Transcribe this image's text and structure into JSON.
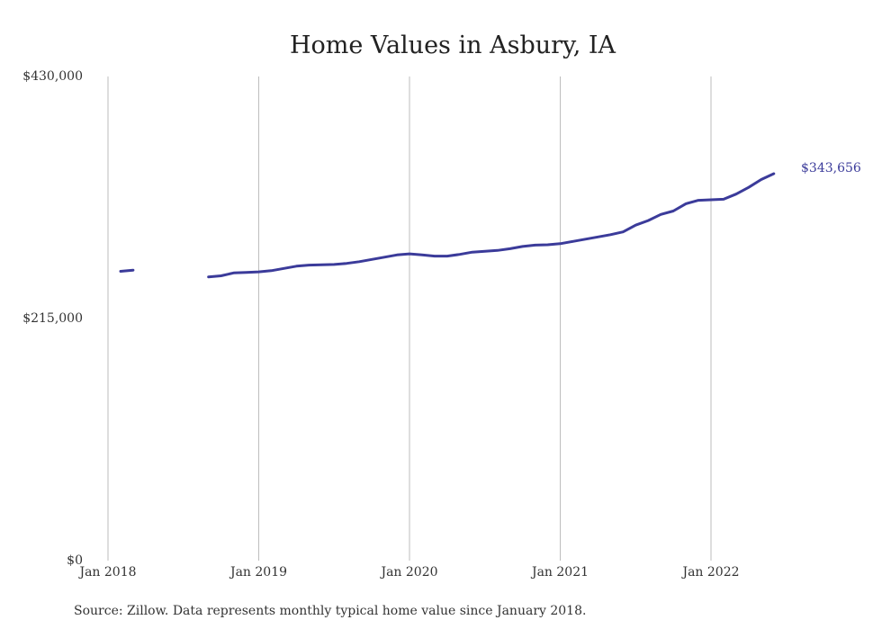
{
  "chart_data": {
    "type": "line",
    "title": "Home Values in Asbury, IA",
    "xlabel": "",
    "ylabel": "",
    "ylim": [
      0,
      430000
    ],
    "y_ticks": [
      {
        "value": 0,
        "label": "$0"
      },
      {
        "value": 215000,
        "label": "$215,000"
      },
      {
        "value": 430000,
        "label": "$430,000"
      }
    ],
    "x_ticks": [
      {
        "value": "2018-01",
        "label": "Jan 2018"
      },
      {
        "value": "2019-01",
        "label": "Jan 2019"
      },
      {
        "value": "2020-01",
        "label": "Jan 2020"
      },
      {
        "value": "2021-01",
        "label": "Jan 2021"
      },
      {
        "value": "2022-01",
        "label": "Jan 2022"
      }
    ],
    "grid": "vertical",
    "legend": "none",
    "series_color": "#3b3b9a",
    "end_label": "$343,656",
    "series": [
      {
        "x": [
          "2018-02",
          "2018-03",
          "2018-04",
          "2018-05",
          "2018-06",
          "2018-07",
          "2018-08",
          "2018-09",
          "2018-10",
          "2018-11",
          "2018-12",
          "2019-01",
          "2019-02",
          "2019-03",
          "2019-04",
          "2019-05",
          "2019-06",
          "2019-07",
          "2019-08",
          "2019-09",
          "2019-10",
          "2019-11",
          "2019-12",
          "2020-01",
          "2020-02",
          "2020-03",
          "2020-04",
          "2020-05",
          "2020-06",
          "2020-07",
          "2020-08",
          "2020-09",
          "2020-10",
          "2020-11",
          "2020-12",
          "2021-01",
          "2021-02",
          "2021-03",
          "2021-04",
          "2021-05",
          "2021-06",
          "2021-07",
          "2021-08",
          "2021-09",
          "2021-10",
          "2021-11",
          "2021-12",
          "2022-01",
          "2022-02",
          "2022-03",
          "2022-04",
          "2022-05",
          "2022-06",
          "2022-07"
        ],
        "y": [
          257000,
          258000,
          null,
          null,
          null,
          null,
          null,
          252000,
          253000,
          255500,
          256000,
          256500,
          257500,
          259500,
          261500,
          262500,
          262700,
          263000,
          264000,
          265500,
          267500,
          269500,
          271500,
          272500,
          271500,
          270500,
          270500,
          272000,
          274000,
          274800,
          275500,
          277000,
          279000,
          280200,
          280500,
          281500,
          283500,
          285500,
          287500,
          289500,
          292000,
          298000,
          302000,
          307500,
          310500,
          317000,
          320000,
          320500,
          321000,
          325500,
          331500,
          338500,
          343656,
          null
        ]
      }
    ]
  },
  "source": "Source: Zillow. Data represents monthly typical home value since January 2018."
}
